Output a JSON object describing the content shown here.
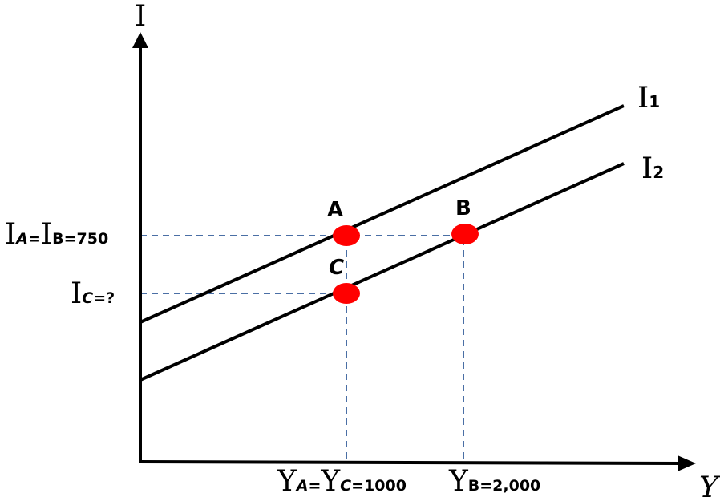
{
  "axes": {
    "y_axis_label": "I",
    "x_axis_label": "Y"
  },
  "lines": [
    {
      "label": "I",
      "subscript": "1"
    },
    {
      "label": "I",
      "subscript": "2"
    }
  ],
  "points": [
    {
      "label": "A",
      "color": "#ff0000"
    },
    {
      "label": "B",
      "color": "#ff0000"
    },
    {
      "label": "C",
      "color": "#ff0000"
    }
  ],
  "y_ticks": {
    "iab": {
      "I1": "I",
      "sub1": "A",
      "eq1": "=",
      "I2": "I",
      "sub2": "B",
      "val": "=750"
    },
    "ic": {
      "I": "I",
      "sub": "C",
      "val": "=?"
    }
  },
  "x_ticks": {
    "yac": {
      "Y1": "Y",
      "sub1": "A",
      "eq1": "=",
      "Y2": "Y",
      "sub2": "C",
      "val": "=1000"
    },
    "yb": {
      "Y": "Y",
      "sub": "B",
      "val": "=2,000"
    }
  },
  "colors": {
    "axis": "#000000",
    "guide": "#4a6fa5",
    "point": "#ff0000"
  }
}
